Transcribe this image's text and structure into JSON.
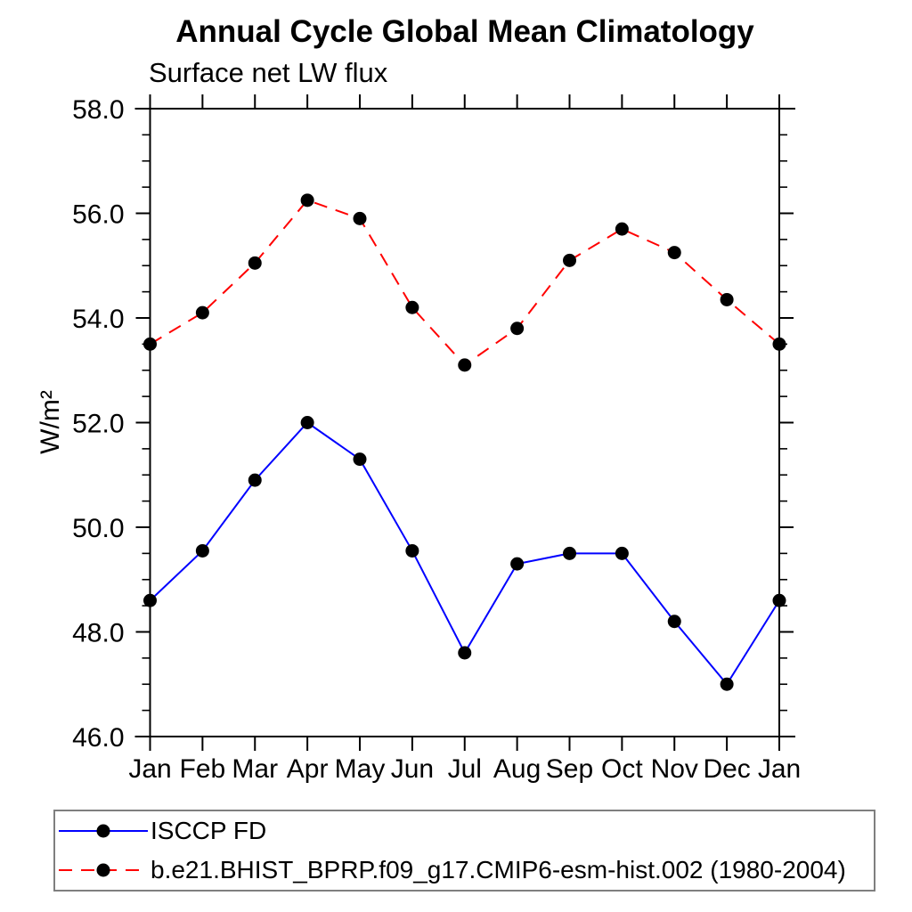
{
  "chart_data": {
    "type": "line",
    "title": "Annual Cycle Global Mean Climatology",
    "subtitle": "Surface net LW flux",
    "xlabel": "",
    "ylabel": "W/m²",
    "categories": [
      "Jan",
      "Feb",
      "Mar",
      "Apr",
      "May",
      "Jun",
      "Jul",
      "Aug",
      "Sep",
      "Oct",
      "Nov",
      "Dec",
      "Jan"
    ],
    "series": [
      {
        "name": "ISCCP FD",
        "color": "#0000ff",
        "line_style": "solid",
        "marker": "circle",
        "marker_color": "#000000",
        "values": [
          48.6,
          49.55,
          50.9,
          52.0,
          51.3,
          49.55,
          47.6,
          49.3,
          49.5,
          49.5,
          48.2,
          47.0,
          48.6
        ]
      },
      {
        "name": "b.e21.BHIST_BPRP.f09_g17.CMIP6-esm-hist.002 (1980-2004)",
        "color": "#ff0000",
        "line_style": "dashed",
        "marker": "circle",
        "marker_color": "#000000",
        "values": [
          53.5,
          54.1,
          55.05,
          56.25,
          55.9,
          54.2,
          53.1,
          53.8,
          55.1,
          55.7,
          55.25,
          54.35,
          53.5
        ]
      }
    ],
    "ylim": [
      46.0,
      58.0
    ],
    "ytick_major": [
      46.0,
      48.0,
      50.0,
      52.0,
      54.0,
      56.0,
      58.0
    ],
    "ytick_labels": [
      "46.0",
      "48.0",
      "50.0",
      "52.0",
      "54.0",
      "56.0",
      "58.0"
    ],
    "ytick_minor_step": 0.5,
    "grid": false,
    "axis_color": "#000000",
    "legend_position": "bottom-left",
    "legend_border_color": "#7f7f7f"
  }
}
